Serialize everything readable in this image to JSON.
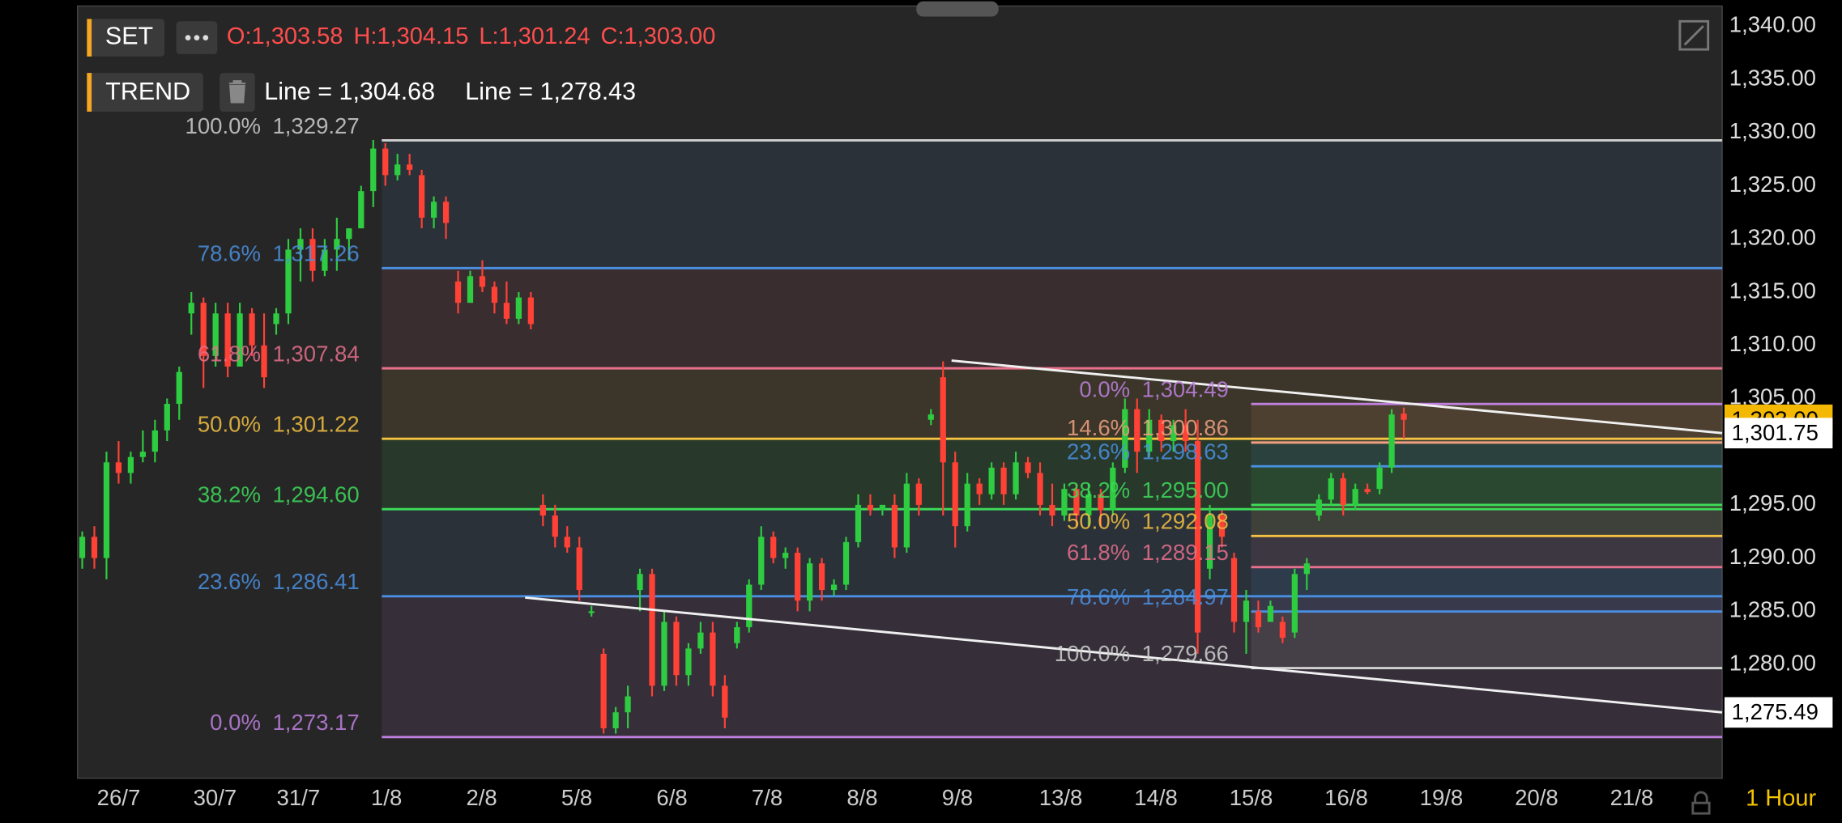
{
  "header": {
    "symbol": "SET",
    "open": "O:1,303.58",
    "high": "H:1,304.15",
    "low": "L:1,301.24",
    "close": "C:1,303.00"
  },
  "indicator": {
    "name": "TREND",
    "values": [
      "Line = 1,304.68",
      "Line = 1,278.43"
    ]
  },
  "price_axis": {
    "ylim": [
      1269.3,
      1341.9
    ],
    "ticks": [
      {
        "value": 1340,
        "label": "1,340.00"
      },
      {
        "value": 1335,
        "label": "1,335.00"
      },
      {
        "value": 1330,
        "label": "1,330.00"
      },
      {
        "value": 1325,
        "label": "1,325.00"
      },
      {
        "value": 1320,
        "label": "1,320.00"
      },
      {
        "value": 1315,
        "label": "1,315.00"
      },
      {
        "value": 1310,
        "label": "1,310.00"
      },
      {
        "value": 1305,
        "label": "1,305.00"
      },
      {
        "value": 1295,
        "label": "1,295.00"
      },
      {
        "value": 1290,
        "label": "1,290.00"
      },
      {
        "value": 1285,
        "label": "1,285.00"
      },
      {
        "value": 1280,
        "label": "1,280.00"
      }
    ],
    "markers": [
      {
        "value": 1303.0,
        "label": "1,303.00",
        "color": "#f5b800"
      },
      {
        "value": 1301.75,
        "label": "1,301.75",
        "color": "#ffffff"
      },
      {
        "value": 1275.49,
        "label": "1,275.49",
        "color": "#ffffff"
      }
    ]
  },
  "time_axis": {
    "labels": [
      "26/7",
      "30/7",
      "31/7",
      "1/8",
      "2/8",
      "5/8",
      "6/8",
      "7/8",
      "8/8",
      "9/8",
      "13/8",
      "14/8",
      "15/8",
      "16/8",
      "19/8",
      "20/8",
      "21/8"
    ],
    "interval": "1 Hour"
  },
  "fib_sets": [
    {
      "levels": [
        {
          "ratio": "100.0%",
          "value": 1329.27,
          "label": "1,329.27",
          "color": "#d0d0d0"
        },
        {
          "ratio": "78.6%",
          "value": 1317.26,
          "label": "1,317.26",
          "color": "#4a90e2"
        },
        {
          "ratio": "61.8%",
          "value": 1307.84,
          "label": "1,307.84",
          "color": "#e8708c"
        },
        {
          "ratio": "50.0%",
          "value": 1301.22,
          "label": "1,301.22",
          "color": "#f5c242"
        },
        {
          "ratio": "38.2%",
          "value": 1294.6,
          "label": "1,294.60",
          "color": "#3ddc5a"
        },
        {
          "ratio": "23.6%",
          "value": 1286.41,
          "label": "1,286.41",
          "color": "#4a90e2"
        },
        {
          "ratio": "0.0%",
          "value": 1273.17,
          "label": "1,273.17",
          "color": "#c080e0"
        }
      ]
    },
    {
      "levels": [
        {
          "ratio": "0.0%",
          "value": 1304.49,
          "label": "1,304.49",
          "color": "#c080e0"
        },
        {
          "ratio": "14.6%",
          "value": 1300.86,
          "label": "1,300.86",
          "color": "#f0a080"
        },
        {
          "ratio": "23.6%",
          "value": 1298.63,
          "label": "1,298.63",
          "color": "#4a90e2"
        },
        {
          "ratio": "38.2%",
          "value": 1295.0,
          "label": "1,295.00",
          "color": "#3ddc5a"
        },
        {
          "ratio": "50.0%",
          "value": 1292.08,
          "label": "1,292.08",
          "color": "#f5c242"
        },
        {
          "ratio": "61.8%",
          "value": 1289.15,
          "label": "1,289.15",
          "color": "#e8708c"
        },
        {
          "ratio": "78.6%",
          "value": 1284.97,
          "label": "1,284.97",
          "color": "#4a90e2"
        },
        {
          "ratio": "100.0%",
          "value": 1279.66,
          "label": "1,279.66",
          "color": "#d0d0d0"
        }
      ]
    }
  ],
  "trend_lines": [
    [
      1308.57,
      1301.75
    ],
    [
      1286.29,
      1275.49
    ]
  ],
  "candles": [
    [
      1290,
      1292.5,
      1289,
      1292
    ],
    [
      1292,
      1293,
      1289,
      1290
    ],
    [
      1290,
      1300,
      1288,
      1299
    ],
    [
      1299,
      1301,
      1297,
      1298
    ],
    [
      1298,
      1300,
      1297,
      1299.5
    ],
    [
      1299.5,
      1302,
      1299,
      1300
    ],
    [
      1300,
      1303,
      1299,
      1302
    ],
    [
      1302,
      1305,
      1301,
      1304.5
    ],
    [
      1304.5,
      1308,
      1303,
      1307.5
    ],
    [
      1313,
      1315,
      1311,
      1314
    ],
    [
      1314,
      1314.5,
      1306,
      1309
    ],
    [
      1309,
      1314,
      1308,
      1313
    ],
    [
      1313,
      1314,
      1307,
      1308
    ],
    [
      1308,
      1314,
      1308,
      1313
    ],
    [
      1313,
      1313.5,
      1309,
      1310
    ],
    [
      1310,
      1313,
      1306,
      1307
    ],
    [
      1312,
      1313.5,
      1311,
      1313
    ],
    [
      1313,
      1320,
      1312,
      1319
    ],
    [
      1319,
      1321,
      1316,
      1320
    ],
    [
      1320,
      1321,
      1316,
      1317
    ],
    [
      1317,
      1320,
      1316.5,
      1319
    ],
    [
      1319,
      1322,
      1317,
      1320
    ],
    [
      1320,
      1321,
      1318,
      1321
    ],
    [
      1321,
      1325,
      1321,
      1324.5
    ],
    [
      1324.5,
      1329.3,
      1323,
      1328.5
    ],
    [
      1328.5,
      1329,
      1325,
      1326
    ],
    [
      1326,
      1328,
      1325.5,
      1327
    ],
    [
      1327,
      1328,
      1326,
      1326.5
    ],
    [
      1326,
      1326.5,
      1321,
      1322
    ],
    [
      1322,
      1324,
      1321,
      1323.5
    ],
    [
      1323.5,
      1324,
      1320,
      1321.5
    ],
    [
      1316,
      1317,
      1313,
      1314
    ],
    [
      1314,
      1317,
      1314,
      1316.5
    ],
    [
      1316.5,
      1318,
      1315,
      1315.5
    ],
    [
      1315.5,
      1316,
      1313,
      1314
    ],
    [
      1314,
      1316,
      1312,
      1312.5
    ],
    [
      1312.5,
      1315,
      1312,
      1314.5
    ],
    [
      1314.5,
      1315,
      1311.5,
      1312
    ],
    [
      1295,
      1296,
      1293,
      1294
    ],
    [
      1294,
      1295,
      1291,
      1292
    ],
    [
      1292,
      1293,
      1290.5,
      1291
    ],
    [
      1291,
      1292,
      1286,
      1287
    ],
    [
      1285,
      1285.5,
      1284.5,
      1285
    ],
    [
      1281,
      1281.5,
      1273.5,
      1274
    ],
    [
      1274,
      1276,
      1273.5,
      1275.5
    ],
    [
      1275.5,
      1278,
      1274,
      1277
    ],
    [
      1287,
      1289,
      1285,
      1288.5
    ],
    [
      1288.5,
      1289,
      1277,
      1278
    ],
    [
      1278,
      1285,
      1277.5,
      1284
    ],
    [
      1284,
      1284.5,
      1278,
      1279
    ],
    [
      1279,
      1282,
      1278,
      1281.5
    ],
    [
      1281.5,
      1284,
      1281,
      1283
    ],
    [
      1283,
      1284,
      1277,
      1278
    ],
    [
      1278,
      1279,
      1274,
      1275
    ],
    [
      1282,
      1284,
      1281.5,
      1283.5
    ],
    [
      1283.5,
      1288,
      1283,
      1287.5
    ],
    [
      1287.5,
      1293,
      1287,
      1292
    ],
    [
      1292,
      1292.5,
      1289.5,
      1290
    ],
    [
      1290,
      1291,
      1289,
      1290.5
    ],
    [
      1290.5,
      1291,
      1285,
      1286
    ],
    [
      1286,
      1290,
      1285,
      1289.5
    ],
    [
      1289.5,
      1290,
      1286,
      1287
    ],
    [
      1287,
      1288,
      1286.5,
      1287.5
    ],
    [
      1287.5,
      1292,
      1287,
      1291.5
    ],
    [
      1291.5,
      1296,
      1291,
      1295
    ],
    [
      1295,
      1296,
      1294,
      1294.5
    ],
    [
      1294.5,
      1295,
      1294,
      1295
    ],
    [
      1295,
      1296,
      1290,
      1291
    ],
    [
      1291,
      1298,
      1290.5,
      1297
    ],
    [
      1297,
      1297.5,
      1294,
      1295
    ],
    [
      1303,
      1304,
      1302.5,
      1303.5
    ],
    [
      1307,
      1308.5,
      1294,
      1299
    ],
    [
      1299,
      1300,
      1291,
      1293
    ],
    [
      1293,
      1298,
      1292.5,
      1297
    ],
    [
      1297,
      1297.5,
      1295,
      1296
    ],
    [
      1296,
      1299,
      1295.5,
      1298.5
    ],
    [
      1298.5,
      1299,
      1295,
      1296
    ],
    [
      1296,
      1300,
      1295.5,
      1299
    ],
    [
      1299,
      1299.5,
      1297.5,
      1298
    ],
    [
      1298,
      1299,
      1294,
      1295
    ],
    [
      1295,
      1297,
      1293,
      1294
    ],
    [
      1294,
      1297,
      1293.5,
      1296.5
    ],
    [
      1296.5,
      1297,
      1293,
      1294
    ],
    [
      1294,
      1297,
      1293,
      1296
    ],
    [
      1296,
      1296.5,
      1293,
      1294.5
    ],
    [
      1294.5,
      1299,
      1294,
      1298.5
    ],
    [
      1298.5,
      1305,
      1298,
      1304
    ],
    [
      1304,
      1305,
      1298,
      1300
    ],
    [
      1300,
      1304,
      1299.5,
      1303
    ],
    [
      1303,
      1303.5,
      1300,
      1301
    ],
    [
      1301,
      1303,
      1300,
      1302.5
    ],
    [
      1302.5,
      1304,
      1300,
      1301
    ],
    [
      1301,
      1303,
      1281,
      1283
    ],
    [
      1289,
      1295,
      1288,
      1294
    ],
    [
      1294,
      1294.5,
      1291,
      1292
    ],
    [
      1290,
      1290.5,
      1283,
      1284
    ],
    [
      1284,
      1287,
      1281,
      1286
    ],
    [
      1285,
      1286,
      1283,
      1283.5
    ],
    [
      1284,
      1286,
      1284,
      1285.5
    ],
    [
      1284,
      1284.5,
      1282,
      1282.5
    ],
    [
      1283,
      1289,
      1282.5,
      1288.5
    ],
    [
      1288.5,
      1290,
      1287,
      1289.5
    ],
    [
      1294,
      1296,
      1293.5,
      1295.5
    ],
    [
      1295.5,
      1298,
      1295,
      1297.5
    ],
    [
      1297.5,
      1298,
      1294,
      1295
    ],
    [
      1295,
      1297,
      1294.5,
      1296.5
    ],
    [
      1296.5,
      1297,
      1296,
      1296.2
    ],
    [
      1296.5,
      1299,
      1296,
      1298.5
    ],
    [
      1298.5,
      1304,
      1298,
      1303.5
    ],
    [
      1303.58,
      1304.15,
      1301.24,
      1303
    ]
  ]
}
